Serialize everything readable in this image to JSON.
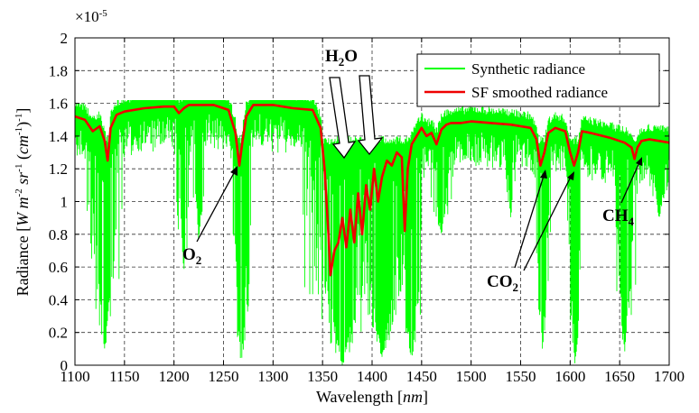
{
  "chart_data": {
    "type": "line",
    "xlabel_main": "Wavelength [",
    "xlabel_unit": "nm",
    "xlabel_end": "]",
    "ylabel": "Radiance [W m-2 sr-1 (cm-1)-1]",
    "y_multiplier": "×10-5",
    "xlim": [
      1100,
      1700
    ],
    "ylim": [
      0,
      2
    ],
    "x_ticks": [
      1100,
      1150,
      1200,
      1250,
      1300,
      1350,
      1400,
      1450,
      1500,
      1550,
      1600,
      1650,
      1700
    ],
    "y_ticks": [
      0,
      0.2,
      0.4,
      0.6,
      0.8,
      1,
      1.2,
      1.4,
      1.6,
      1.8,
      2
    ],
    "grid": true,
    "legend_position": "top-right",
    "series": [
      {
        "name": "Synthetic radiance",
        "color": "#00ff00",
        "absorption_bands": [
          {
            "center": 1130,
            "width": 18,
            "min": 0.1
          },
          {
            "center": 1210,
            "width": 8,
            "min": 0.58
          },
          {
            "center": 1225,
            "width": 6,
            "min": 0.75
          },
          {
            "center": 1268,
            "width": 12,
            "min": 0.0
          },
          {
            "center": 1370,
            "width": 40,
            "min": 0.0
          },
          {
            "center": 1410,
            "width": 30,
            "min": 0.05
          },
          {
            "center": 1440,
            "width": 15,
            "min": 0.0
          },
          {
            "center": 1470,
            "width": 12,
            "min": 0.8
          },
          {
            "center": 1540,
            "width": 6,
            "min": 0.9
          },
          {
            "center": 1572,
            "width": 8,
            "min": 0.1
          },
          {
            "center": 1605,
            "width": 8,
            "min": 0.0
          },
          {
            "center": 1655,
            "width": 12,
            "min": 0.08
          },
          {
            "center": 1690,
            "width": 10,
            "min": 0.9
          }
        ]
      },
      {
        "name": "SF smoothed radiance",
        "color": "#ee0000",
        "x": [
          1100,
          1110,
          1118,
          1125,
          1130,
          1133,
          1136,
          1142,
          1150,
          1170,
          1190,
          1200,
          1205,
          1210,
          1215,
          1225,
          1240,
          1255,
          1262,
          1266,
          1269,
          1273,
          1280,
          1300,
          1320,
          1340,
          1348,
          1352,
          1356,
          1358,
          1362,
          1366,
          1370,
          1374,
          1378,
          1382,
          1386,
          1390,
          1394,
          1398,
          1402,
          1406,
          1410,
          1415,
          1420,
          1425,
          1430,
          1433,
          1436,
          1440,
          1445,
          1450,
          1455,
          1460,
          1465,
          1470,
          1475,
          1480,
          1490,
          1500,
          1520,
          1540,
          1550,
          1560,
          1566,
          1570,
          1574,
          1578,
          1585,
          1595,
          1600,
          1604,
          1608,
          1612,
          1620,
          1640,
          1655,
          1662,
          1665,
          1668,
          1672,
          1680,
          1690,
          1700
        ],
        "y": [
          1.52,
          1.5,
          1.43,
          1.46,
          1.37,
          1.25,
          1.45,
          1.53,
          1.55,
          1.57,
          1.58,
          1.58,
          1.54,
          1.57,
          1.59,
          1.59,
          1.59,
          1.56,
          1.42,
          1.22,
          1.36,
          1.52,
          1.59,
          1.59,
          1.57,
          1.56,
          1.45,
          1.2,
          0.8,
          0.55,
          0.7,
          0.75,
          0.9,
          0.72,
          0.95,
          0.75,
          1.05,
          0.8,
          1.1,
          0.95,
          1.2,
          1.0,
          1.15,
          1.25,
          1.22,
          1.3,
          1.27,
          0.82,
          1.2,
          1.35,
          1.4,
          1.45,
          1.4,
          1.42,
          1.35,
          1.44,
          1.47,
          1.48,
          1.48,
          1.49,
          1.48,
          1.47,
          1.46,
          1.45,
          1.38,
          1.22,
          1.3,
          1.42,
          1.45,
          1.43,
          1.3,
          1.22,
          1.3,
          1.43,
          1.42,
          1.39,
          1.36,
          1.33,
          1.26,
          1.33,
          1.37,
          1.38,
          1.37,
          1.36
        ]
      }
    ],
    "annotations": [
      {
        "label": "H2O",
        "text_main": "H",
        "text_sub": "2",
        "text_end": "O"
      },
      {
        "label": "O2",
        "text_main": "O",
        "text_sub": "2",
        "text_end": ""
      },
      {
        "label": "CO2",
        "text_main": "CO",
        "text_sub": "2",
        "text_end": ""
      },
      {
        "label": "CH4",
        "text_main": "CH",
        "text_sub": "4",
        "text_end": ""
      }
    ]
  }
}
